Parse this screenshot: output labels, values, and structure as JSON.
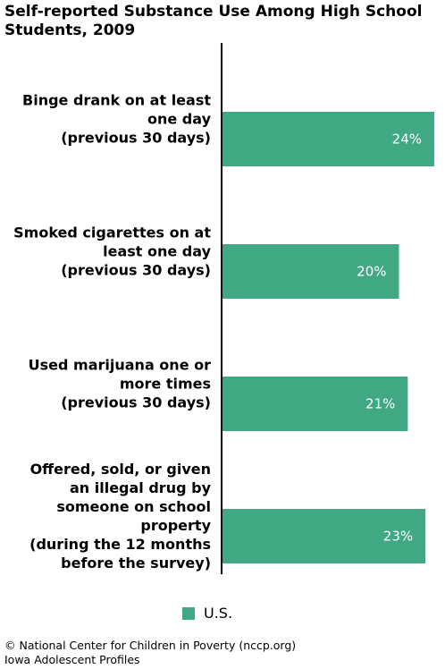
{
  "chart_data": {
    "type": "bar",
    "orientation": "horizontal",
    "title": "Self-reported Substance Use Among High School Students, 2009",
    "categories": [
      [
        "Binge drank on at least",
        "one day",
        "(previous 30 days)"
      ],
      [
        "Smoked cigarettes on at",
        "least one day",
        "(previous 30 days)"
      ],
      [
        "Used marijuana one or",
        "more times",
        "(previous 30 days)"
      ],
      [
        "Offered, sold, or given",
        "an illegal drug by",
        "someone on school",
        "property",
        "(during the 12 months",
        "before the survey)"
      ]
    ],
    "series": [
      {
        "name": "U.S.",
        "color": "#40a882",
        "values": [
          24,
          20,
          21,
          23
        ],
        "labels": [
          "24%",
          "20%",
          "21%",
          "23%"
        ]
      }
    ],
    "xlim": [
      0,
      24
    ],
    "legend_position": "bottom"
  },
  "footer": {
    "line1": "© National Center for Children in Poverty (nccp.org)",
    "line2": "Iowa Adolescent Profiles"
  }
}
